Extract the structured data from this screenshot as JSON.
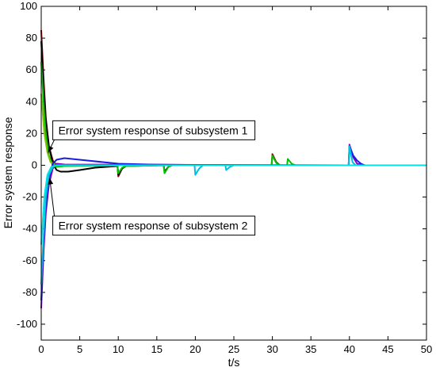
{
  "chart_data": {
    "type": "line",
    "xlabel": "t/s",
    "ylabel": "Error system response",
    "xlim": [
      0,
      50
    ],
    "ylim": [
      -110,
      100
    ],
    "x_ticks": [
      0,
      5,
      10,
      15,
      20,
      25,
      30,
      35,
      40,
      45,
      50
    ],
    "y_ticks": [
      -100,
      -80,
      -60,
      -40,
      -20,
      0,
      20,
      40,
      60,
      80,
      100
    ],
    "grid": false,
    "annotations": [
      {
        "text": "Error system response of subsystem 1",
        "box_at": [
          1.5,
          28
        ],
        "arrow_to": [
          0.9,
          8
        ]
      },
      {
        "text": "Error system response of subsystem 2",
        "box_at": [
          1.5,
          -32
        ],
        "arrow_to": [
          1.1,
          -8
        ]
      }
    ],
    "series": [
      {
        "color": "#8b0000",
        "values": [
          [
            0,
            85
          ],
          [
            0.3,
            55
          ],
          [
            0.6,
            30
          ],
          [
            1,
            12
          ],
          [
            1.5,
            3
          ],
          [
            2,
            0
          ],
          [
            3,
            0
          ],
          [
            9.9,
            0
          ],
          [
            10,
            -7
          ],
          [
            10.5,
            -2
          ],
          [
            11,
            0
          ],
          [
            29.9,
            0
          ],
          [
            30,
            7
          ],
          [
            30.5,
            2
          ],
          [
            31,
            0
          ],
          [
            50,
            0
          ]
        ]
      },
      {
        "color": "#000000",
        "values": [
          [
            0,
            78
          ],
          [
            0.3,
            50
          ],
          [
            0.6,
            28
          ],
          [
            1,
            12
          ],
          [
            1.5,
            1
          ],
          [
            2,
            -3
          ],
          [
            2.5,
            -4
          ],
          [
            3.5,
            -4
          ],
          [
            5,
            -3
          ],
          [
            7,
            -1.5
          ],
          [
            9.9,
            -0.5
          ],
          [
            10,
            -6
          ],
          [
            10.5,
            -2
          ],
          [
            11,
            -0.5
          ],
          [
            15.9,
            0
          ],
          [
            16,
            -4
          ],
          [
            16.5,
            -1
          ],
          [
            17,
            0
          ],
          [
            50,
            0
          ]
        ]
      },
      {
        "color": "#00c000",
        "values": [
          [
            0,
            65
          ],
          [
            0.3,
            40
          ],
          [
            0.6,
            20
          ],
          [
            1,
            6
          ],
          [
            1.5,
            0
          ],
          [
            2,
            -1
          ],
          [
            3,
            -0.5
          ],
          [
            9.9,
            -0.2
          ],
          [
            10,
            -5
          ],
          [
            10.5,
            -1.5
          ],
          [
            11,
            -0.5
          ],
          [
            15.9,
            0
          ],
          [
            16,
            -5
          ],
          [
            16.5,
            -1
          ],
          [
            17,
            0
          ],
          [
            29.9,
            0
          ],
          [
            30,
            6
          ],
          [
            30.5,
            1.5
          ],
          [
            31,
            0
          ],
          [
            31.9,
            0
          ],
          [
            32,
            4
          ],
          [
            32.5,
            1
          ],
          [
            33,
            0
          ],
          [
            50,
            0
          ]
        ]
      },
      {
        "color": "#80c000",
        "values": [
          [
            0,
            45
          ],
          [
            0.4,
            20
          ],
          [
            0.8,
            8
          ],
          [
            1.2,
            2
          ],
          [
            2,
            0
          ],
          [
            50,
            0
          ]
        ]
      },
      {
        "color": "#8000c0",
        "values": [
          [
            0,
            -90
          ],
          [
            0.3,
            -55
          ],
          [
            0.6,
            -30
          ],
          [
            1,
            -12
          ],
          [
            1.5,
            -2
          ],
          [
            2,
            1
          ],
          [
            3,
            0.5
          ],
          [
            39.9,
            0
          ],
          [
            40,
            13
          ],
          [
            40.5,
            5
          ],
          [
            41,
            1
          ],
          [
            42,
            0
          ],
          [
            50,
            0
          ]
        ]
      },
      {
        "color": "#1c1ce0",
        "values": [
          [
            0,
            -85
          ],
          [
            0.3,
            -50
          ],
          [
            0.6,
            -25
          ],
          [
            1,
            -8
          ],
          [
            1.5,
            1
          ],
          [
            2,
            3.5
          ],
          [
            3,
            4.5
          ],
          [
            4,
            4
          ],
          [
            6,
            3
          ],
          [
            8,
            2
          ],
          [
            10,
            1
          ],
          [
            14,
            0.5
          ],
          [
            20,
            0.2
          ],
          [
            39.9,
            0
          ],
          [
            40,
            12
          ],
          [
            40.5,
            6
          ],
          [
            41,
            3
          ],
          [
            41.5,
            1
          ],
          [
            42,
            0
          ],
          [
            50,
            0
          ]
        ]
      },
      {
        "color": "#00c0e0",
        "values": [
          [
            0,
            -75
          ],
          [
            0.3,
            -45
          ],
          [
            0.6,
            -20
          ],
          [
            1,
            -6
          ],
          [
            1.5,
            -1
          ],
          [
            2,
            0
          ],
          [
            19.9,
            0
          ],
          [
            20,
            -6
          ],
          [
            20.5,
            -2
          ],
          [
            21,
            0
          ],
          [
            23.9,
            0
          ],
          [
            24,
            -3
          ],
          [
            24.5,
            -1
          ],
          [
            25,
            0
          ],
          [
            39.9,
            0
          ],
          [
            40,
            12
          ],
          [
            40.4,
            2
          ],
          [
            40.8,
            0
          ],
          [
            50,
            0
          ]
        ]
      },
      {
        "color": "#00e0e0",
        "values": [
          [
            0,
            -50
          ],
          [
            0.4,
            -20
          ],
          [
            0.8,
            -6
          ],
          [
            1.3,
            -1
          ],
          [
            2,
            0
          ],
          [
            50,
            0
          ]
        ]
      }
    ]
  }
}
